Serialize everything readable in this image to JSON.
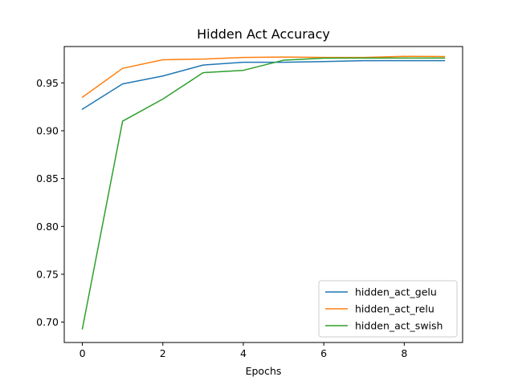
{
  "chart_data": {
    "type": "line",
    "title": "Hidden Act Accuracy",
    "xlabel": "Epochs",
    "ylabel": "",
    "x": [
      0,
      1,
      2,
      3,
      4,
      5,
      6,
      7,
      8,
      9
    ],
    "xlim": [
      -0.45,
      9.45
    ],
    "ylim": [
      0.6787,
      0.988
    ],
    "xticks": [
      0,
      2,
      4,
      6,
      8
    ],
    "yticks": [
      0.7,
      0.75,
      0.8,
      0.85,
      0.9,
      0.95
    ],
    "xtick_labels": [
      "0",
      "2",
      "4",
      "6",
      "8"
    ],
    "ytick_labels": [
      "0.70",
      "0.75",
      "0.80",
      "0.85",
      "0.90",
      "0.95"
    ],
    "grid": false,
    "legend_position": "lower-right",
    "series": [
      {
        "name": "hidden_act_gelu",
        "color": "#1f77b4",
        "values": [
          0.9225,
          0.9489,
          0.9572,
          0.9686,
          0.9715,
          0.9715,
          0.9723,
          0.9732,
          0.9732,
          0.9732
        ]
      },
      {
        "name": "hidden_act_relu",
        "color": "#ff7f0e",
        "values": [
          0.935,
          0.9652,
          0.9742,
          0.9749,
          0.9766,
          0.977,
          0.9766,
          0.9766,
          0.9777,
          0.9775
        ]
      },
      {
        "name": "hidden_act_swish",
        "color": "#2ca02c",
        "values": [
          0.693,
          0.91,
          0.9331,
          0.9607,
          0.9631,
          0.9737,
          0.9758,
          0.976,
          0.976,
          0.976
        ]
      }
    ]
  }
}
